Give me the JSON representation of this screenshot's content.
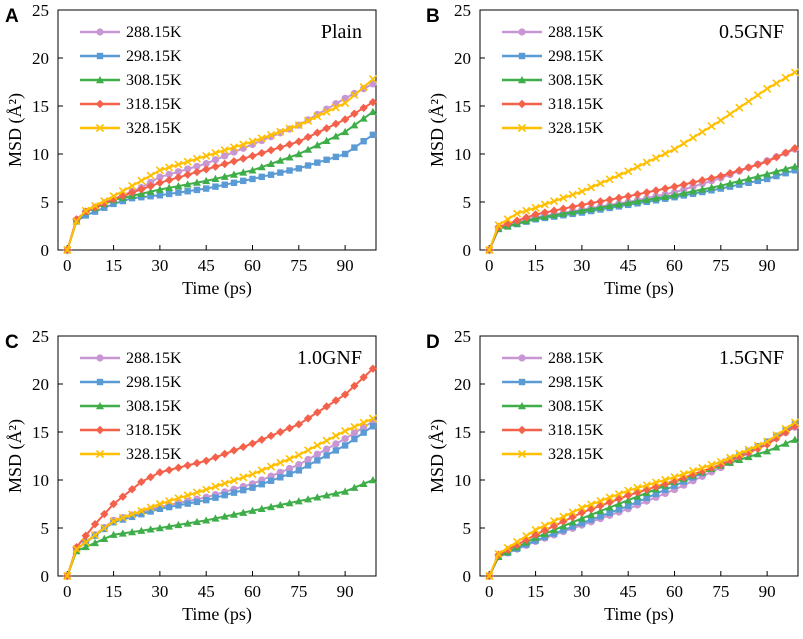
{
  "series_style": {
    "288.15K": {
      "color": "#c896d2",
      "marker": "circle"
    },
    "298.15K": {
      "color": "#5b9bd5",
      "marker": "square"
    },
    "308.15K": {
      "color": "#3fae49",
      "marker": "triangle"
    },
    "318.15K": {
      "color": "#f4614b",
      "marker": "diamond"
    },
    "328.15K": {
      "color": "#ffc000",
      "marker": "x"
    }
  },
  "chart_data": [
    {
      "panel": "A",
      "type": "line",
      "title": "Plain",
      "xlabel": "Time (ps)",
      "ylabel": "MSD (Å²)",
      "xlim": [
        -3,
        100
      ],
      "ylim": [
        0,
        25
      ],
      "xticks": [
        0,
        15,
        30,
        45,
        60,
        75,
        90
      ],
      "yticks": [
        0,
        5,
        10,
        15,
        20,
        25
      ],
      "legend_position": "top-left",
      "x_step": 3,
      "series": [
        {
          "name": "288.15K",
          "anchors": [
            [
              0,
              0
            ],
            [
              3,
              3.0
            ],
            [
              6,
              4.0
            ],
            [
              15,
              5.3
            ],
            [
              24,
              6.5
            ],
            [
              30,
              7.6
            ],
            [
              45,
              9.0
            ],
            [
              60,
              11.0
            ],
            [
              75,
              13.0
            ],
            [
              90,
              15.8
            ],
            [
              99,
              17.3
            ]
          ]
        },
        {
          "name": "298.15K",
          "anchors": [
            [
              0,
              0
            ],
            [
              3,
              3.0
            ],
            [
              6,
              3.6
            ],
            [
              15,
              4.8
            ],
            [
              21,
              5.4
            ],
            [
              30,
              5.7
            ],
            [
              45,
              6.4
            ],
            [
              60,
              7.4
            ],
            [
              75,
              8.5
            ],
            [
              90,
              10.0
            ],
            [
              99,
              12.0
            ]
          ]
        },
        {
          "name": "308.15K",
          "anchors": [
            [
              0,
              0
            ],
            [
              3,
              3.0
            ],
            [
              6,
              4.0
            ],
            [
              15,
              5.2
            ],
            [
              30,
              6.3
            ],
            [
              45,
              7.2
            ],
            [
              60,
              8.3
            ],
            [
              75,
              10.0
            ],
            [
              90,
              12.3
            ],
            [
              99,
              14.4
            ]
          ]
        },
        {
          "name": "318.15K",
          "anchors": [
            [
              0,
              0
            ],
            [
              3,
              3.2
            ],
            [
              6,
              4.0
            ],
            [
              15,
              5.3
            ],
            [
              30,
              7.0
            ],
            [
              45,
              8.4
            ],
            [
              60,
              9.8
            ],
            [
              75,
              11.3
            ],
            [
              90,
              13.6
            ],
            [
              99,
              15.4
            ]
          ]
        },
        {
          "name": "328.15K",
          "anchors": [
            [
              0,
              0
            ],
            [
              3,
              3.0
            ],
            [
              6,
              4.1
            ],
            [
              15,
              5.6
            ],
            [
              30,
              8.3
            ],
            [
              45,
              9.8
            ],
            [
              60,
              11.3
            ],
            [
              75,
              13.0
            ],
            [
              90,
              15.3
            ],
            [
              99,
              17.8
            ]
          ]
        }
      ]
    },
    {
      "panel": "B",
      "type": "line",
      "title": "0.5GNF",
      "xlabel": "Time (ps)",
      "ylabel": "MSD (Å²)",
      "xlim": [
        -3,
        100
      ],
      "ylim": [
        0,
        25
      ],
      "xticks": [
        0,
        15,
        30,
        45,
        60,
        75,
        90
      ],
      "yticks": [
        0,
        5,
        10,
        15,
        20,
        25
      ],
      "legend_position": "top-left",
      "x_step": 3,
      "series": [
        {
          "name": "288.15K",
          "anchors": [
            [
              0,
              0
            ],
            [
              3,
              2.3
            ],
            [
              15,
              3.4
            ],
            [
              30,
              4.2
            ],
            [
              45,
              5.0
            ],
            [
              60,
              6.0
            ],
            [
              75,
              7.5
            ],
            [
              90,
              9.3
            ],
            [
              99,
              10.5
            ]
          ]
        },
        {
          "name": "298.15K",
          "anchors": [
            [
              0,
              0
            ],
            [
              3,
              2.2
            ],
            [
              15,
              3.2
            ],
            [
              30,
              3.9
            ],
            [
              45,
              4.7
            ],
            [
              60,
              5.5
            ],
            [
              75,
              6.4
            ],
            [
              90,
              7.4
            ],
            [
              99,
              8.3
            ]
          ]
        },
        {
          "name": "308.15K",
          "anchors": [
            [
              0,
              0
            ],
            [
              3,
              2.2
            ],
            [
              15,
              3.3
            ],
            [
              30,
              4.1
            ],
            [
              45,
              4.9
            ],
            [
              60,
              5.7
            ],
            [
              75,
              6.7
            ],
            [
              90,
              7.9
            ],
            [
              99,
              8.7
            ]
          ]
        },
        {
          "name": "318.15K",
          "anchors": [
            [
              0,
              0
            ],
            [
              3,
              2.4
            ],
            [
              15,
              3.7
            ],
            [
              30,
              4.7
            ],
            [
              45,
              5.6
            ],
            [
              60,
              6.6
            ],
            [
              75,
              7.7
            ],
            [
              90,
              9.2
            ],
            [
              99,
              10.6
            ]
          ]
        },
        {
          "name": "328.15K",
          "anchors": [
            [
              0,
              0
            ],
            [
              3,
              2.6
            ],
            [
              9,
              3.8
            ],
            [
              15,
              4.4
            ],
            [
              30,
              6.1
            ],
            [
              45,
              8.2
            ],
            [
              60,
              10.5
            ],
            [
              75,
              13.5
            ],
            [
              90,
              16.8
            ],
            [
              99,
              18.5
            ]
          ]
        }
      ]
    },
    {
      "panel": "C",
      "type": "line",
      "title": "1.0GNF",
      "xlabel": "Time (ps)",
      "ylabel": "MSD (Å²)",
      "xlim": [
        -3,
        100
      ],
      "ylim": [
        0,
        25
      ],
      "xticks": [
        0,
        15,
        30,
        45,
        60,
        75,
        90
      ],
      "yticks": [
        0,
        5,
        10,
        15,
        20,
        25
      ],
      "legend_position": "top-left",
      "x_step": 3,
      "series": [
        {
          "name": "288.15K",
          "anchors": [
            [
              0,
              0
            ],
            [
              3,
              2.8
            ],
            [
              15,
              5.8
            ],
            [
              30,
              7.2
            ],
            [
              45,
              8.2
            ],
            [
              60,
              9.6
            ],
            [
              75,
              11.6
            ],
            [
              90,
              14.3
            ],
            [
              99,
              16.1
            ]
          ]
        },
        {
          "name": "298.15K",
          "anchors": [
            [
              0,
              0
            ],
            [
              3,
              2.8
            ],
            [
              15,
              5.6
            ],
            [
              30,
              7.0
            ],
            [
              45,
              7.9
            ],
            [
              60,
              9.2
            ],
            [
              75,
              11.0
            ],
            [
              90,
              13.6
            ],
            [
              99,
              15.6
            ]
          ]
        },
        {
          "name": "308.15K",
          "anchors": [
            [
              0,
              0
            ],
            [
              3,
              2.6
            ],
            [
              15,
              4.3
            ],
            [
              30,
              5.0
            ],
            [
              45,
              5.8
            ],
            [
              60,
              6.8
            ],
            [
              75,
              7.8
            ],
            [
              90,
              8.8
            ],
            [
              99,
              10.0
            ]
          ]
        },
        {
          "name": "318.15K",
          "anchors": [
            [
              0,
              0
            ],
            [
              3,
              3.0
            ],
            [
              9,
              5.4
            ],
            [
              15,
              7.5
            ],
            [
              24,
              9.8
            ],
            [
              30,
              10.8
            ],
            [
              45,
              12.0
            ],
            [
              60,
              13.8
            ],
            [
              75,
              15.8
            ],
            [
              90,
              18.9
            ],
            [
              99,
              21.6
            ]
          ]
        },
        {
          "name": "328.15K",
          "anchors": [
            [
              0,
              0
            ],
            [
              3,
              2.8
            ],
            [
              15,
              5.7
            ],
            [
              30,
              7.5
            ],
            [
              45,
              9.0
            ],
            [
              60,
              10.6
            ],
            [
              75,
              12.6
            ],
            [
              90,
              15.1
            ],
            [
              99,
              16.4
            ]
          ]
        }
      ]
    },
    {
      "panel": "D",
      "type": "line",
      "title": "1.5GNF",
      "xlabel": "Time (ps)",
      "ylabel": "MSD (Å²)",
      "xlim": [
        -3,
        100
      ],
      "ylim": [
        0,
        25
      ],
      "xticks": [
        0,
        15,
        30,
        45,
        60,
        75,
        90
      ],
      "yticks": [
        0,
        5,
        10,
        15,
        20,
        25
      ],
      "legend_position": "top-left",
      "x_step": 3,
      "series": [
        {
          "name": "288.15K",
          "anchors": [
            [
              0,
              0
            ],
            [
              3,
              2.0
            ],
            [
              15,
              3.6
            ],
            [
              30,
              5.3
            ],
            [
              45,
              7.0
            ],
            [
              60,
              9.0
            ],
            [
              75,
              11.3
            ],
            [
              90,
              13.8
            ],
            [
              99,
              15.5
            ]
          ]
        },
        {
          "name": "298.15K",
          "anchors": [
            [
              0,
              0
            ],
            [
              3,
              2.0
            ],
            [
              15,
              3.7
            ],
            [
              30,
              5.5
            ],
            [
              45,
              7.3
            ],
            [
              60,
              9.4
            ],
            [
              75,
              11.6
            ],
            [
              90,
              14.0
            ],
            [
              99,
              15.8
            ]
          ]
        },
        {
          "name": "308.15K",
          "anchors": [
            [
              0,
              0
            ],
            [
              3,
              2.0
            ],
            [
              15,
              4.0
            ],
            [
              30,
              6.0
            ],
            [
              45,
              7.9
            ],
            [
              60,
              9.8
            ],
            [
              75,
              11.5
            ],
            [
              90,
              13.0
            ],
            [
              99,
              14.2
            ]
          ]
        },
        {
          "name": "318.15K",
          "anchors": [
            [
              0,
              0
            ],
            [
              3,
              2.2
            ],
            [
              15,
              4.3
            ],
            [
              30,
              6.6
            ],
            [
              45,
              8.4
            ],
            [
              60,
              9.9
            ],
            [
              75,
              11.6
            ],
            [
              90,
              13.7
            ],
            [
              99,
              15.6
            ]
          ]
        },
        {
          "name": "328.15K",
          "anchors": [
            [
              0,
              0
            ],
            [
              3,
              2.3
            ],
            [
              15,
              4.8
            ],
            [
              30,
              7.1
            ],
            [
              45,
              8.9
            ],
            [
              60,
              10.3
            ],
            [
              75,
              11.9
            ],
            [
              90,
              14.0
            ],
            [
              99,
              16.0
            ]
          ]
        }
      ]
    }
  ]
}
